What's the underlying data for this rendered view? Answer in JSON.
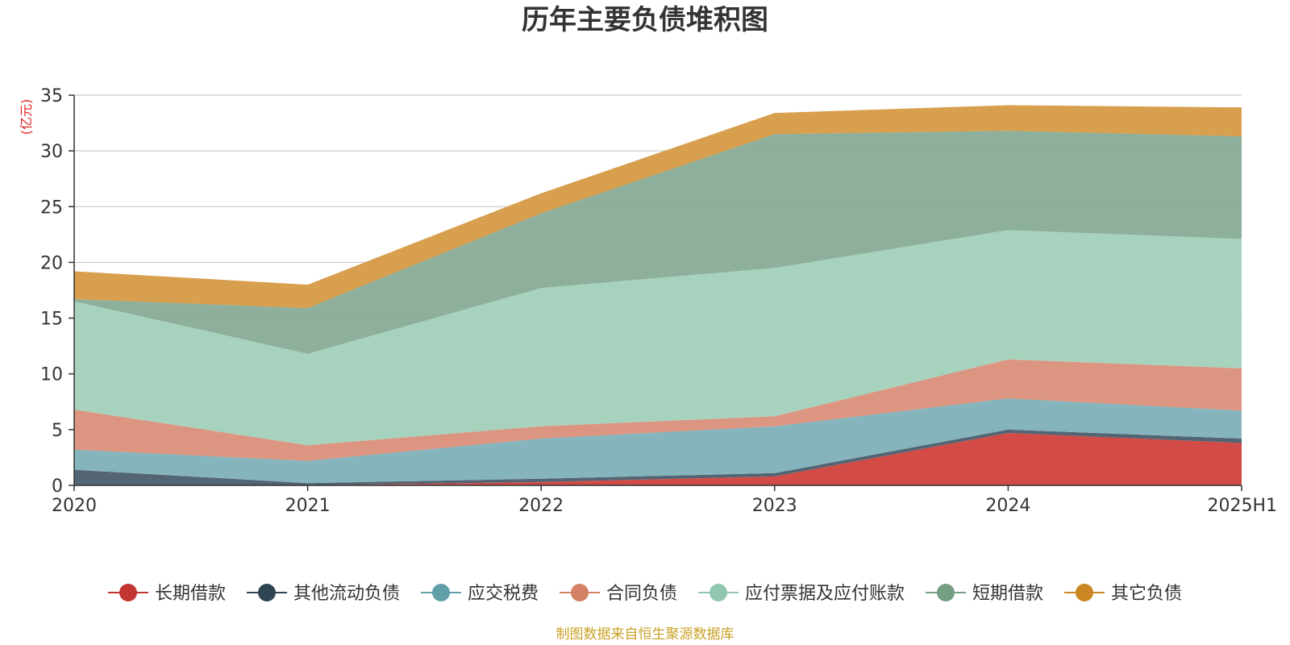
{
  "chart_data": {
    "type": "area",
    "stacked": true,
    "title": "历年主要负债堆积图",
    "ylabel": "(亿元)",
    "xlabel": "",
    "categories": [
      "2020",
      "2021",
      "2022",
      "2023",
      "2024",
      "2025H1"
    ],
    "ylim": [
      0,
      35
    ],
    "yticks": [
      0,
      5,
      10,
      15,
      20,
      25,
      30,
      35
    ],
    "grid": true,
    "legend_position": "bottom",
    "series": [
      {
        "name": "长期借款",
        "values": [
          0,
          0,
          0.3,
          0.8,
          4.7,
          3.8
        ],
        "color": "#d0413c",
        "legend_color": "#c23531"
      },
      {
        "name": "其他流动负债",
        "values": [
          1.4,
          0.2,
          0.3,
          0.3,
          0.3,
          0.4
        ],
        "color": "#4a5d6c",
        "legend_color": "#2f4554"
      },
      {
        "name": "应交税费",
        "values": [
          1.8,
          2.0,
          3.6,
          4.2,
          2.8,
          2.5
        ],
        "color": "#7fb0b8",
        "legend_color": "#61a0a8"
      },
      {
        "name": "合同负债",
        "values": [
          3.6,
          1.4,
          1.1,
          0.9,
          3.5,
          3.8
        ],
        "color": "#da8f7a",
        "legend_color": "#d48265"
      },
      {
        "name": "应付票据及应付账款",
        "values": [
          9.7,
          8.2,
          12.4,
          13.3,
          11.6,
          11.6
        ],
        "color": "#a2d0bb",
        "legend_color": "#91c7ae"
      },
      {
        "name": "短期借款",
        "values": [
          0.2,
          4.1,
          6.7,
          12.0,
          8.9,
          9.2
        ],
        "color": "#87ab96",
        "legend_color": "#749f83"
      },
      {
        "name": "其它负债",
        "values": [
          2.5,
          2.1,
          1.8,
          1.9,
          2.3,
          2.6
        ],
        "color": "#d59a45",
        "legend_color": "#ca8622"
      }
    ]
  },
  "source_note": "制图数据来自恒生聚源数据库"
}
